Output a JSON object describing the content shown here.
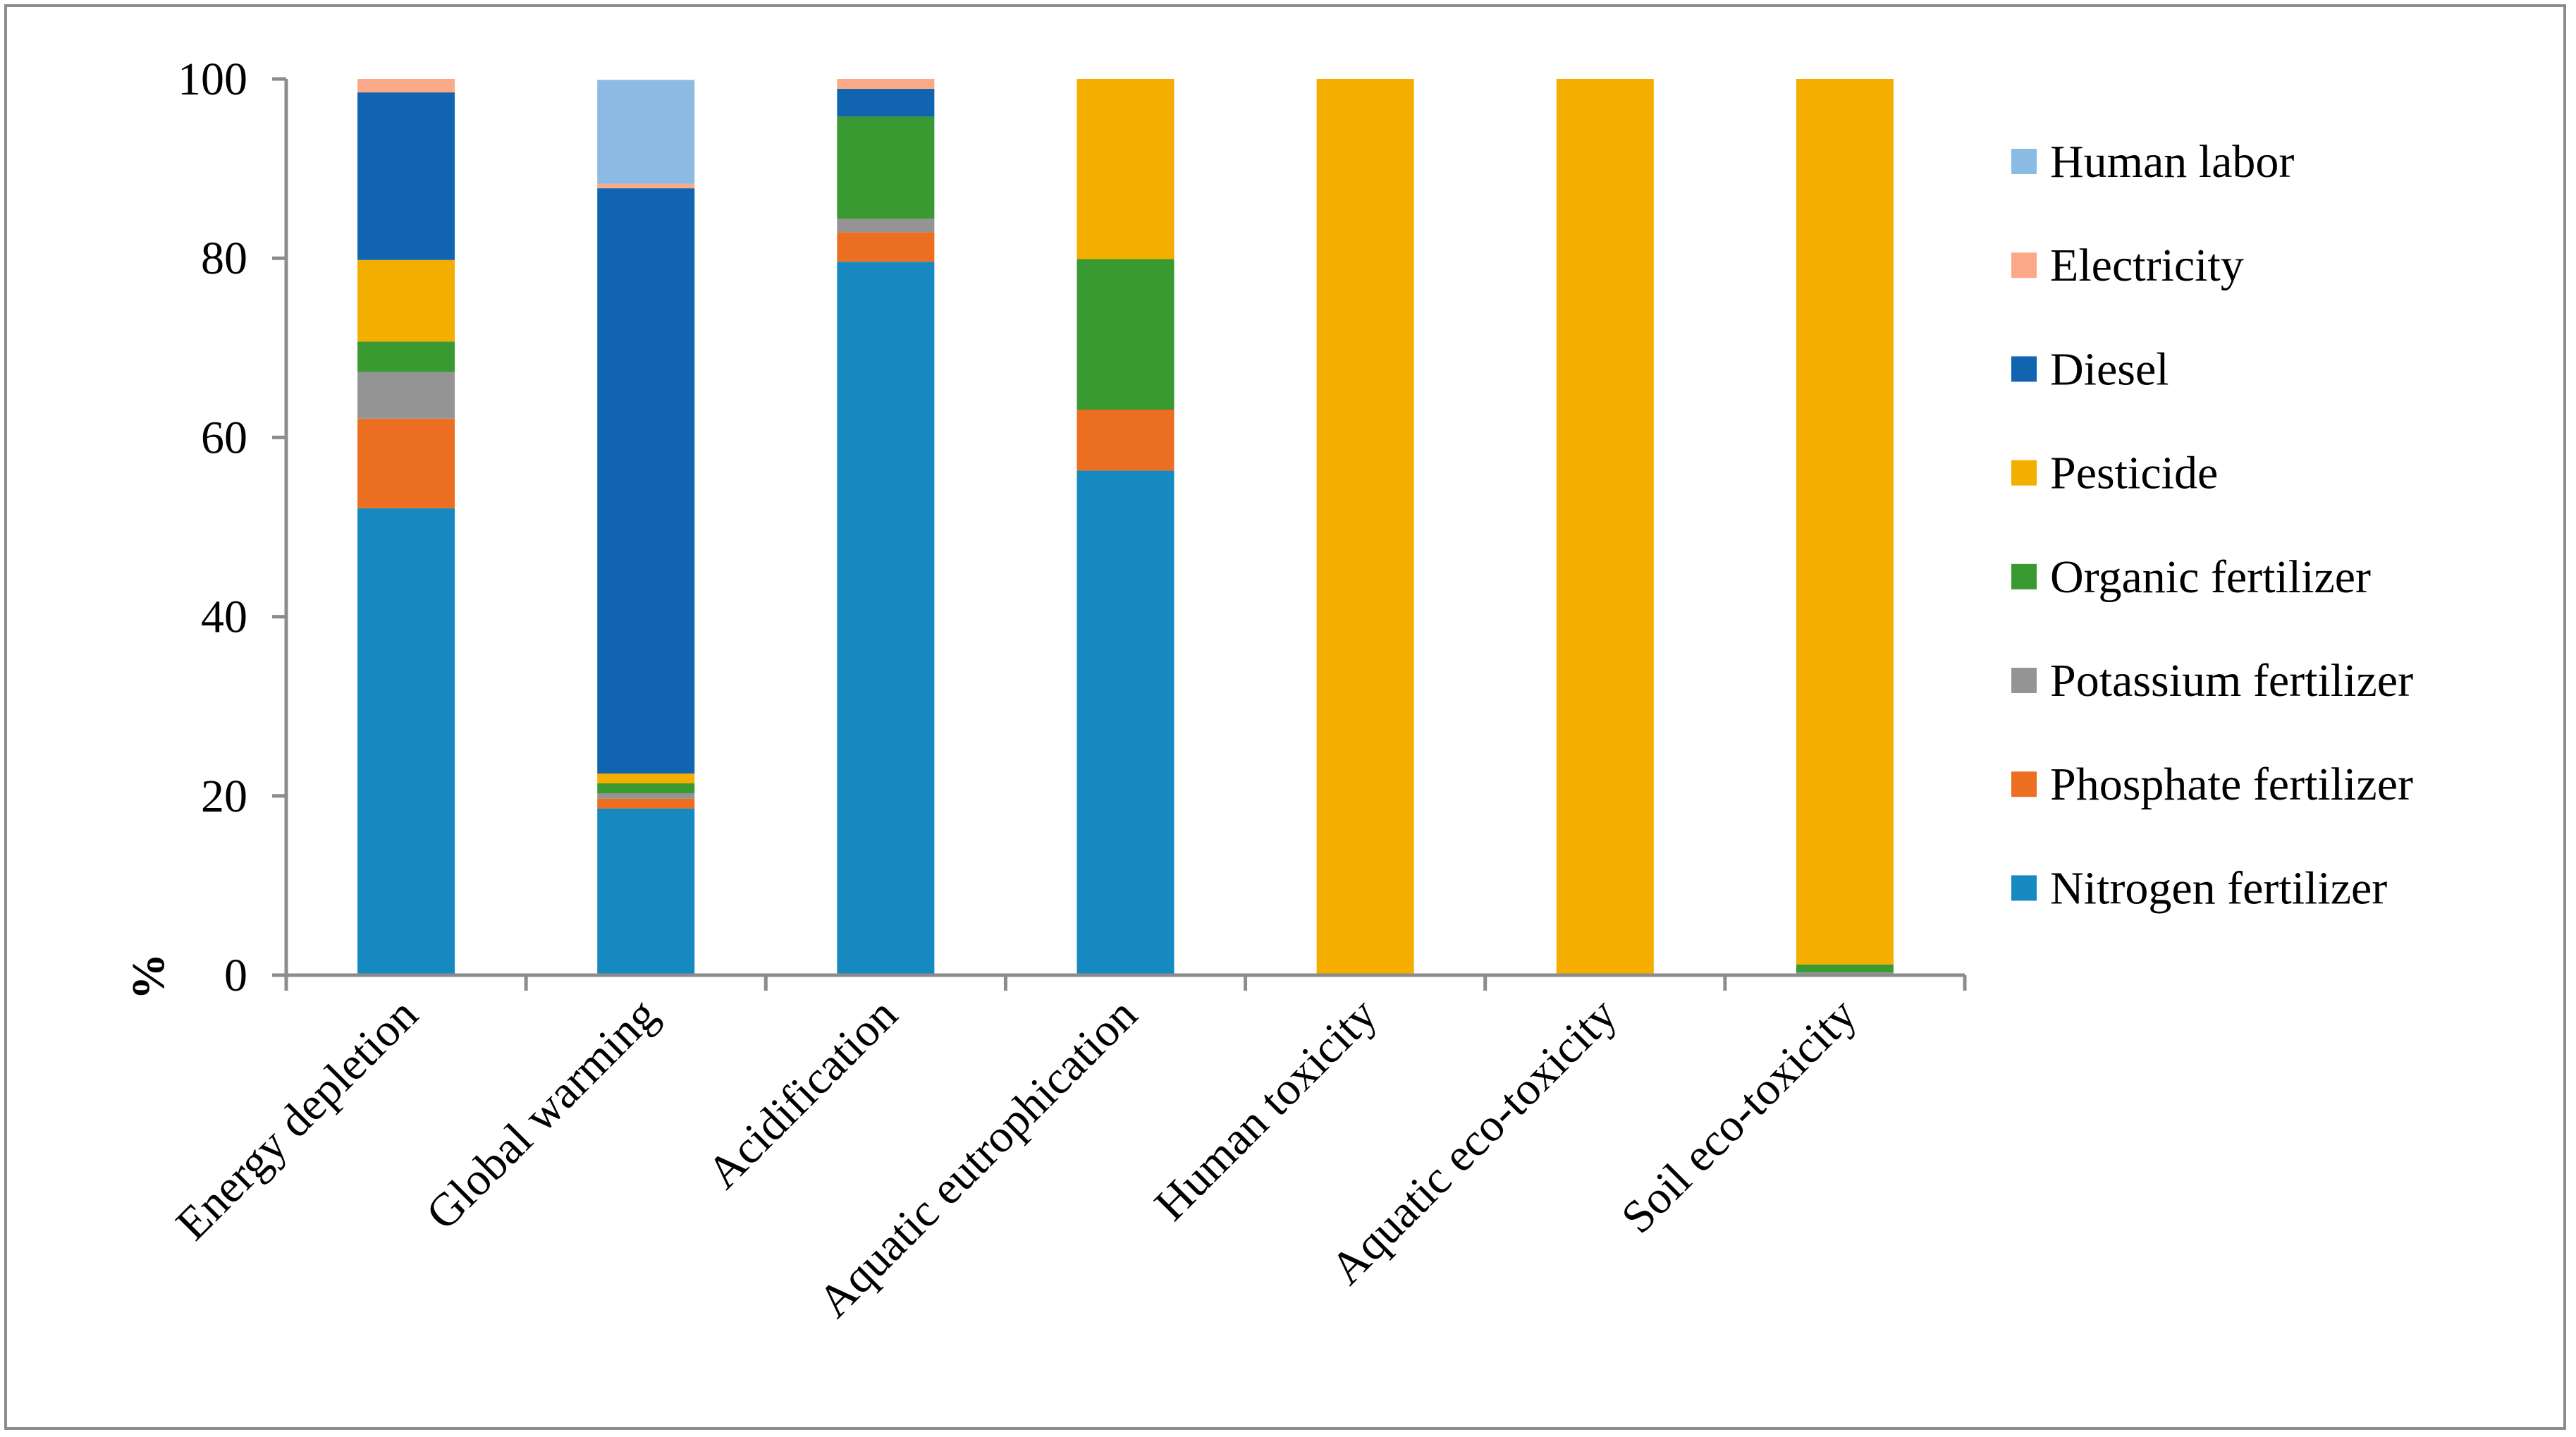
{
  "chart_data": {
    "type": "bar",
    "stacked": true,
    "ylabel": "%",
    "ylim": [
      0,
      100
    ],
    "yticks": [
      0,
      20,
      40,
      60,
      80,
      100
    ],
    "grid": false,
    "legend_position": "right",
    "categories": [
      "Energy depletion",
      "Global warming",
      "Acidification",
      "Aquatic eutrophication",
      "Human toxicity",
      "Aquatic eco-toxicity",
      "Soil eco-toxicity"
    ],
    "series": [
      {
        "name": "Nitrogen fertilizer",
        "color": "#168ac0",
        "values": [
          52.1,
          18.6,
          79.6,
          56.3,
          0,
          0,
          0
        ]
      },
      {
        "name": "Phosphate fertilizer",
        "color": "#ec6e20",
        "values": [
          10.0,
          1.1,
          3.3,
          6.8,
          0,
          0,
          0
        ]
      },
      {
        "name": "Potassium fertilizer",
        "color": "#949494",
        "values": [
          5.2,
          0.6,
          1.5,
          0,
          0,
          0,
          0.3
        ]
      },
      {
        "name": "Organic fertilizer",
        "color": "#3a9a32",
        "values": [
          3.4,
          1.1,
          11.4,
          16.8,
          0,
          0,
          0.9
        ]
      },
      {
        "name": "Pesticide",
        "color": "#f4ae00",
        "values": [
          9.1,
          1.1,
          0,
          20.1,
          100,
          100,
          98.8
        ]
      },
      {
        "name": "Diesel",
        "color": "#1164b0",
        "values": [
          18.7,
          65.3,
          3.1,
          0,
          0,
          0,
          0
        ]
      },
      {
        "name": "Electricity",
        "color": "#fca98a",
        "values": [
          1.5,
          0.5,
          1.1,
          0,
          0,
          0,
          0
        ]
      },
      {
        "name": "Human labor",
        "color": "#8bbbe2",
        "values": [
          0,
          11.6,
          0,
          0,
          0,
          0,
          0
        ]
      }
    ]
  }
}
